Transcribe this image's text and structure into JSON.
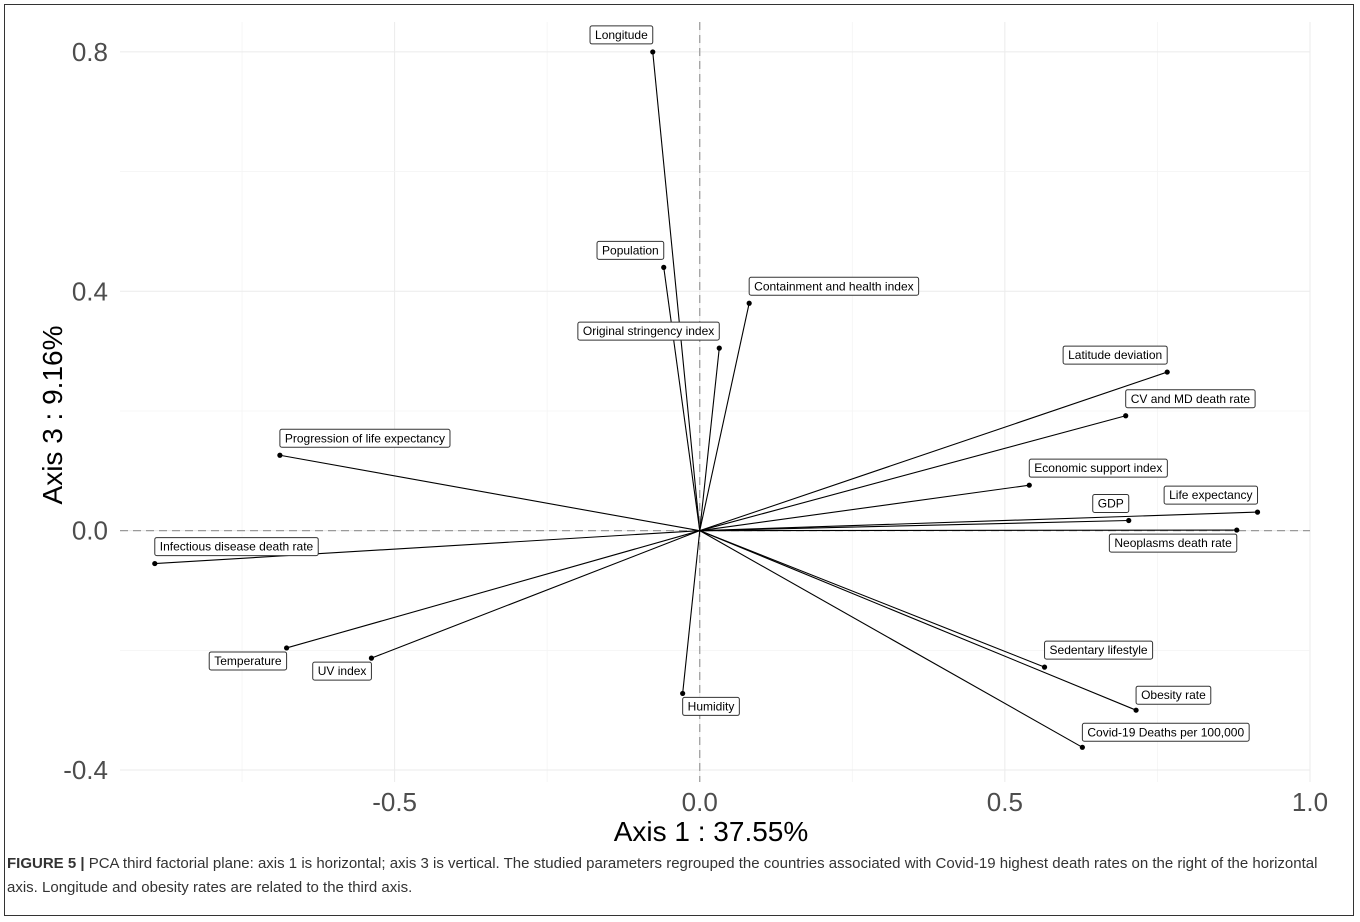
{
  "figure": {
    "caption_label": "FIGURE 5 |",
    "caption_text": " PCA third factorial plane: axis 1 is horizontal; axis 3 is vertical. The studied parameters regrouped the countries associated with Covid-19 highest death rates on the right of the horizontal axis. Longitude and obesity rates are related to the third axis."
  },
  "chart_data": {
    "type": "scatter",
    "subtype": "pca-variable-biplot",
    "xlabel": "Axis 1 : 37.55%",
    "ylabel": "Axis 3 : 9.16%",
    "xlim": [
      -0.95,
      1.0
    ],
    "ylim": [
      -0.42,
      0.85
    ],
    "x_ticks": [
      -0.5,
      0.0,
      0.5,
      1.0
    ],
    "x_tick_labels": [
      "-0.5",
      "0.0",
      "0.5",
      "1.0"
    ],
    "y_ticks": [
      -0.4,
      0.0,
      0.4,
      0.8
    ],
    "y_tick_labels": [
      "-0.4",
      "0.0",
      "0.4",
      "0.8"
    ],
    "grid": true,
    "reference_lines": {
      "x": 0,
      "y": 0,
      "style": "dashed"
    },
    "variables": [
      {
        "name": "Longitude",
        "x": -0.077,
        "y": 0.8,
        "label_side": "left"
      },
      {
        "name": "Population",
        "x": -0.059,
        "y": 0.44,
        "label_side": "left"
      },
      {
        "name": "Original stringency index",
        "x": 0.032,
        "y": 0.305,
        "label_side": "left"
      },
      {
        "name": "Containment and health index",
        "x": 0.081,
        "y": 0.38,
        "label_side": "right"
      },
      {
        "name": "Latitude deviation",
        "x": 0.766,
        "y": 0.265,
        "label_side": "left"
      },
      {
        "name": "CV and MD death rate",
        "x": 0.698,
        "y": 0.192,
        "label_side": "right"
      },
      {
        "name": "Progression of life expectancy",
        "x": -0.688,
        "y": 0.126,
        "label_side": "right"
      },
      {
        "name": "Economic support index",
        "x": 0.54,
        "y": 0.076,
        "label_side": "right"
      },
      {
        "name": "Life expectancy",
        "x": 0.914,
        "y": 0.031,
        "label_side": "left"
      },
      {
        "name": "GDP",
        "x": 0.703,
        "y": 0.017,
        "label_side": "left"
      },
      {
        "name": "Neoplasms death rate",
        "x": 0.88,
        "y": 0.001,
        "label_side": "left"
      },
      {
        "name": "Infectious disease death rate",
        "x": -0.893,
        "y": -0.055,
        "label_side": "right"
      },
      {
        "name": "Temperature",
        "x": -0.677,
        "y": -0.196,
        "label_side": "left"
      },
      {
        "name": "UV index",
        "x": -0.538,
        "y": -0.213,
        "label_side": "left"
      },
      {
        "name": "Sedentary lifestyle",
        "x": 0.565,
        "y": -0.228,
        "label_side": "right"
      },
      {
        "name": "Humidity",
        "x": -0.028,
        "y": -0.272,
        "label_side": "right"
      },
      {
        "name": "Obesity rate",
        "x": 0.715,
        "y": -0.3,
        "label_side": "right"
      },
      {
        "name": "Covid-19 Deaths per 100,000",
        "x": 0.627,
        "y": -0.362,
        "label_side": "right"
      }
    ]
  }
}
